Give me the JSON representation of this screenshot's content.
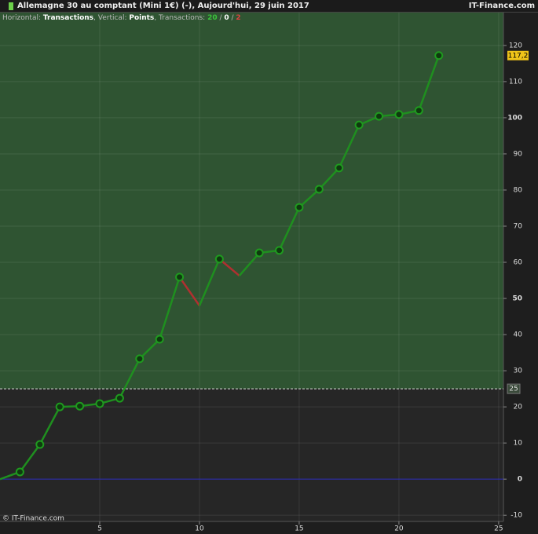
{
  "header": {
    "title": "Allemagne 30 au comptant (Mini 1€) (-), Aujourd'hui, 29 juin 2017",
    "site": "IT-Finance.com",
    "legend_parts": [
      {
        "text": "Horizontal: ",
        "color": "#bbbbbb",
        "bold": false
      },
      {
        "text": "Transactions",
        "color": "#ffffff",
        "bold": true
      },
      {
        "text": ", Vertical: ",
        "color": "#bbbbbb",
        "bold": false
      },
      {
        "text": "Points",
        "color": "#ffffff",
        "bold": true
      },
      {
        "text": ", Transactions: ",
        "color": "#bbbbbb",
        "bold": false
      },
      {
        "text": "20",
        "color": "#3bc43b",
        "bold": true
      },
      {
        "text": " / ",
        "color": "#bbbbbb",
        "bold": false
      },
      {
        "text": "0",
        "color": "#ffffff",
        "bold": true
      },
      {
        "text": " / ",
        "color": "#bbbbbb",
        "bold": false
      },
      {
        "text": "2",
        "color": "#e04040",
        "bold": true
      }
    ]
  },
  "footer": "© IT-Finance.com",
  "chart_data": {
    "type": "line",
    "x": [
      0,
      1,
      2,
      3,
      4,
      5,
      6,
      7,
      8,
      9,
      10,
      11,
      12,
      13,
      14,
      15,
      16,
      17,
      18,
      19,
      20,
      21,
      22
    ],
    "values": [
      0,
      2.0,
      9.6,
      20.0,
      20.2,
      20.9,
      22.4,
      33.3,
      38.7,
      55.9,
      48.0,
      60.9,
      56.3,
      62.6,
      63.3,
      75.2,
      80.2,
      86.1,
      98.0,
      100.4,
      100.9,
      102.0,
      117.2
    ],
    "point_colors": [
      null,
      "#1f8f1f",
      "#1f8f1f",
      "#1f8f1f",
      "#1f8f1f",
      "#1f8f1f",
      "#1f8f1f",
      "#1f8f1f",
      "#1f8f1f",
      "#1f8f1f",
      "#b03030",
      "#1f8f1f",
      "#b03030",
      "#1f8f1f",
      "#1f8f1f",
      "#1f8f1f",
      "#1f8f1f",
      "#1f8f1f",
      "#1f8f1f",
      "#1f8f1f",
      "#1f8f1f",
      "#1f8f1f",
      "#1f8f1f"
    ],
    "last_value_label": "117,2",
    "threshold": 25,
    "xlim": [
      0,
      25.24
    ],
    "xticks": [
      5,
      10,
      15,
      20,
      25
    ],
    "ylim": [
      -11.7,
      129.1
    ],
    "yticks": [
      -10,
      0,
      10,
      20,
      30,
      40,
      50,
      60,
      70,
      80,
      90,
      100,
      110,
      120
    ],
    "grid": true
  }
}
